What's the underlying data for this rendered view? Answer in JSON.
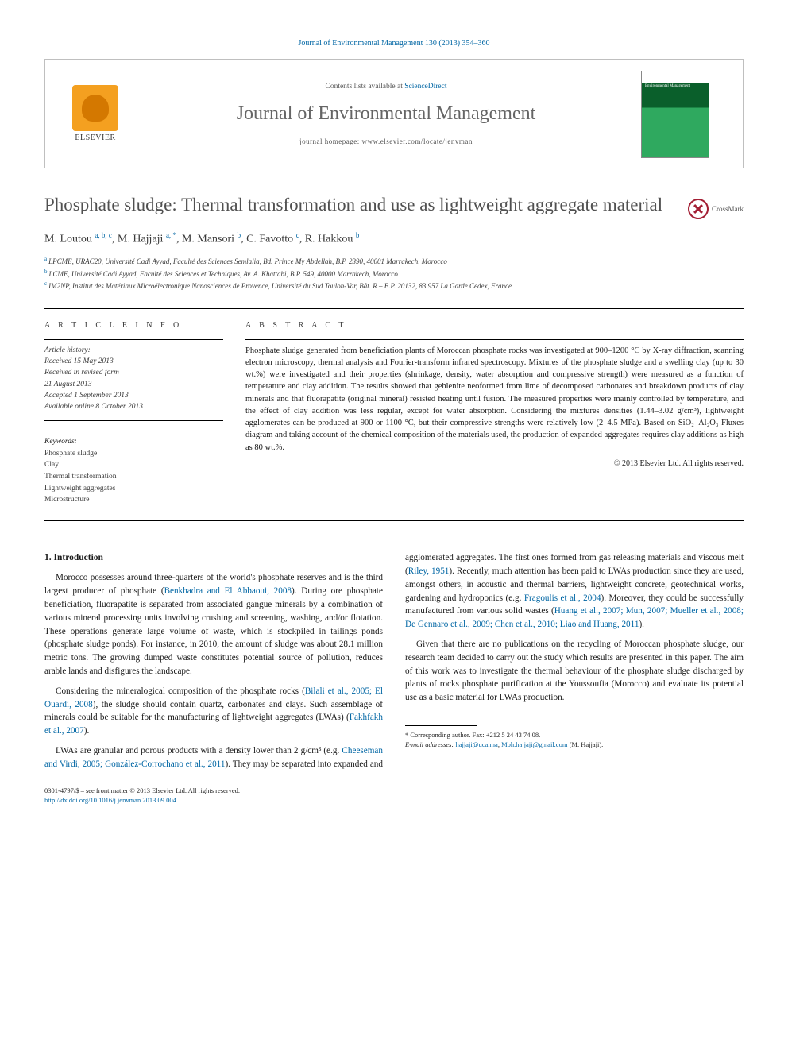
{
  "citation_header": "Journal of Environmental Management 130 (2013) 354–360",
  "header": {
    "publisher": "ELSEVIER",
    "availability_prefix": "Contents lists available at ",
    "availability_link": "ScienceDirect",
    "journal_name": "Journal of Environmental Management",
    "homepage_line": "journal homepage: www.elsevier.com/locate/jenvman",
    "cover_text": "Environmental Management"
  },
  "crossmark_label": "CrossMark",
  "title": "Phosphate sludge: Thermal transformation and use as lightweight aggregate material",
  "authors_html": "M. Loutou <sup>a, b, c</sup>, M. Hajjaji <sup>a, *</sup>, M. Mansori <sup>b</sup>, C. Favotto <sup>c</sup>, R. Hakkou <sup>b</sup>",
  "affiliations": [
    {
      "sup": "a",
      "text": "LPCME, URAC20, Université Cadi Ayyad, Faculté des Sciences Semlalia, Bd. Prince My Abdellah, B.P. 2390, 40001 Marrakech, Morocco"
    },
    {
      "sup": "b",
      "text": "LCME, Université Cadi Ayyad, Faculté des Sciences et Techniques, Av. A. Khattabi, B.P. 549, 40000 Marrakech, Morocco"
    },
    {
      "sup": "c",
      "text": "IM2NP, Institut des Matériaux Microélectronique Nanosciences de Provence, Université du Sud Toulon-Var, Bât. R – B.P. 20132, 83 957 La Garde Cedex, France"
    }
  ],
  "article_info_heading": "A R T I C L E   I N F O",
  "abstract_heading": "A B S T R A C T",
  "history": {
    "label": "Article history:",
    "received": "Received 15 May 2013",
    "revised_label": "Received in revised form",
    "revised_date": "21 August 2013",
    "accepted": "Accepted 1 September 2013",
    "online": "Available online 8 October 2013"
  },
  "keywords_label": "Keywords:",
  "keywords": [
    "Phosphate sludge",
    "Clay",
    "Thermal transformation",
    "Lightweight aggregates",
    "Microstructure"
  ],
  "abstract": "Phosphate sludge generated from beneficiation plants of Moroccan phosphate rocks was investigated at 900–1200 °C by X-ray diffraction, scanning electron microscopy, thermal analysis and Fourier-transform infrared spectroscopy. Mixtures of the phosphate sludge and a swelling clay (up to 30 wt.%) were investigated and their properties (shrinkage, density, water absorption and compressive strength) were measured as a function of temperature and clay addition. The results showed that gehlenite neoformed from lime of decomposed carbonates and breakdown products of clay minerals and that fluorapatite (original mineral) resisted heating until fusion. The measured properties were mainly controlled by temperature, and the effect of clay addition was less regular, except for water absorption. Considering the mixtures densities (1.44–3.02 g/cm³), lightweight agglomerates can be produced at 900 or 1100 °C, but their compressive strengths were relatively low (2–4.5 MPa). Based on SiO₂–Al₂O₃-Fluxes diagram and taking account of the chemical composition of the materials used, the production of expanded aggregates requires clay additions as high as 80 wt.%.",
  "copyright": "© 2013 Elsevier Ltd. All rights reserved.",
  "intro_heading": "1. Introduction",
  "body": {
    "p1a": "Morocco possesses around three-quarters of the world's phosphate reserves and is the third largest producer of phosphate (",
    "p1_link1": "Benkhadra and El Abbaoui, 2008",
    "p1b": "). During ore phosphate beneficiation, fluorapatite is separated from associated gangue minerals by a combination of various mineral processing units involving crushing and screening, washing, and/or flotation. These operations generate large volume of waste, which is stockpiled in tailings ponds (phosphate sludge ponds). For instance, in 2010, the amount of sludge was about 28.1 million metric tons. The growing dumped waste constitutes potential source of pollution, reduces arable lands and disfigures the landscape.",
    "p2a": "Considering the mineralogical composition of the phosphate rocks (",
    "p2_link1": "Bilali et al., 2005; El Ouardi, 2008",
    "p2b": "), the sludge should contain quartz, carbonates and clays. Such assemblage of minerals could be suitable for the manufacturing of lightweight aggregates (LWAs) (",
    "p2_link2": "Fakhfakh et al., 2007",
    "p2c": ").",
    "p3a": "LWAs are granular and porous products with a density lower than 2 g/cm³ (e.g. ",
    "p3_link1": "Cheeseman and Virdi, 2005; González-Corrochano et al., 2011",
    "p3b": "). They may be separated into expanded and agglomerated aggregates. The first ones formed from gas releasing materials and viscous melt (",
    "p3_link2": "Riley, 1951",
    "p3c": "). Recently, much attention has been paid to LWAs production since they are used, amongst others, in acoustic and thermal barriers, lightweight concrete, geotechnical works, gardening and hydroponics (e.g. ",
    "p3_link3": "Fragoulis et al., 2004",
    "p3d": "). Moreover, they could be successfully manufactured from various solid wastes (",
    "p3_link4": "Huang et al., 2007; Mun, 2007; Mueller et al., 2008; De Gennaro et al., 2009; Chen et al., 2010; Liao and Huang, 2011",
    "p3e": ").",
    "p4": "Given that there are no publications on the recycling of Moroccan phosphate sludge, our research team decided to carry out the study which results are presented in this paper. The aim of this work was to investigate the thermal behaviour of the phosphate sludge discharged by plants of rocks phosphate purification at the Youssoufia (Morocco) and evaluate its potential use as a basic material for LWAs production."
  },
  "footnote": {
    "corr_label": "* Corresponding author. Fax: +212 5 24 43 74 08.",
    "emails_label": "E-mail addresses: ",
    "email1": "hajjaji@uca.ma",
    "sep": ", ",
    "email2": "Moh.hajjaji@gmail.com",
    "author_paren": " (M. Hajjaji)."
  },
  "bottom": {
    "line1": "0301-4797/$ – see front matter © 2013 Elsevier Ltd. All rights reserved.",
    "doi": "http://dx.doi.org/10.1016/j.jenvman.2013.09.004"
  },
  "colors": {
    "link": "#0066a4",
    "title_gray": "#505050",
    "rule": "#000000"
  }
}
